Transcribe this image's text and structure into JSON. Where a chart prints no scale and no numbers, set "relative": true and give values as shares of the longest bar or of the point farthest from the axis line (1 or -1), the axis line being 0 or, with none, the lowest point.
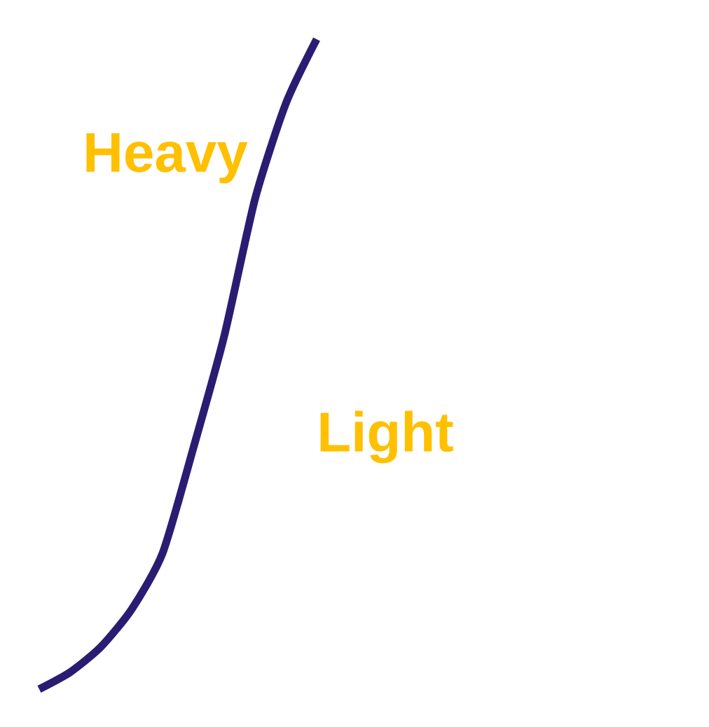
{
  "chart_data": {
    "type": "line",
    "relative": true,
    "categories": [
      null,
      null,
      null,
      null,
      null,
      null,
      null,
      null,
      null,
      null
    ],
    "series": [
      {
        "color": "#2b1c73",
        "values": [
          0,
          0.026,
          0.065,
          0.123,
          0.209,
          0.371,
          0.543,
          0.754,
          0.901,
          1
        ]
      }
    ],
    "annotations": [
      "Heavy",
      "Light"
    ]
  }
}
